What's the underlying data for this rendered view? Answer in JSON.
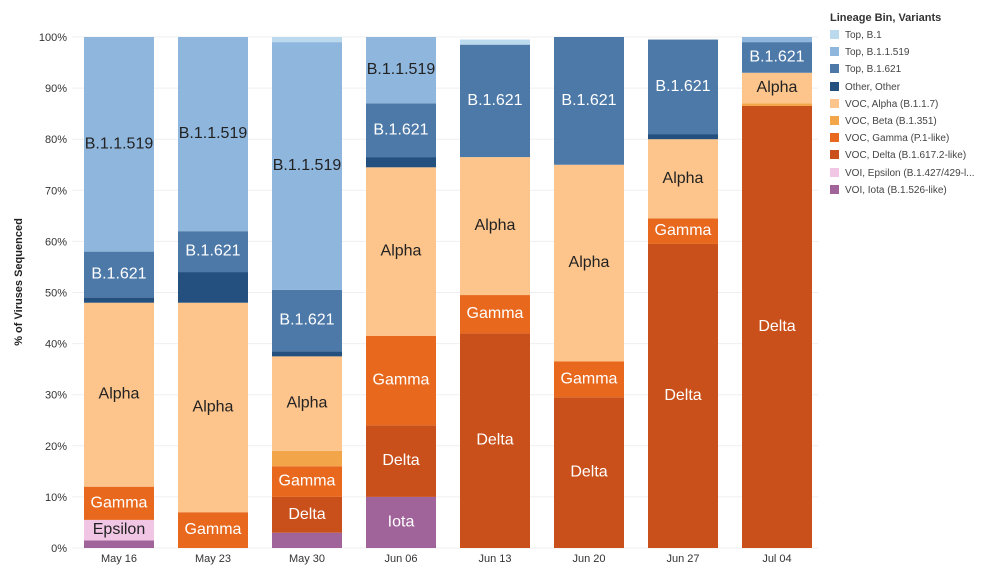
{
  "chart_data": {
    "type": "bar",
    "stacked": true,
    "normalized": true,
    "ylabel": "% of Viruses Sequenced",
    "ylim": [
      0,
      100
    ],
    "yticks": [
      "0%",
      "10%",
      "20%",
      "30%",
      "40%",
      "50%",
      "60%",
      "70%",
      "80%",
      "90%",
      "100%"
    ],
    "categories": [
      "May 16",
      "May 23",
      "May 30",
      "Jun 06",
      "Jun 13",
      "Jun 20",
      "Jun 27",
      "Jul 04"
    ],
    "legend": {
      "title": "Lineage Bin, Variants",
      "position": "right",
      "items": [
        "Top, B.1",
        "Top, B.1.1.519",
        "Top, B.1.621",
        "Other, Other",
        "VOC, Alpha (B.1.1.7)",
        "VOC, Beta (B.1.351)",
        "VOC, Gamma (P.1-like)",
        "VOC, Delta (B.1.617.2-like)",
        "VOI, Epsilon (B.1.427/429-l...",
        "VOI, Iota (B.1.526-like)"
      ]
    },
    "series": [
      {
        "name": "VOI, Iota (B.1.526-like)",
        "label": "Iota",
        "color": "#a0649b",
        "text_color": "#ffffff",
        "values": [
          1.5,
          0,
          3,
          10,
          0,
          0,
          0,
          0
        ]
      },
      {
        "name": "VOI, Epsilon (B.1.427/429-l...",
        "label": "Epsilon",
        "color": "#f1c6e4",
        "text_color": "#222222",
        "values": [
          4,
          0,
          0,
          0,
          0,
          0,
          0,
          0
        ]
      },
      {
        "name": "VOC, Delta (B.1.617.2-like)",
        "label": "Delta",
        "color": "#c9501b",
        "text_color": "#ffffff",
        "values": [
          0,
          0,
          7,
          14,
          42,
          29.5,
          59.5,
          86.5
        ]
      },
      {
        "name": "VOC, Gamma (P.1-like)",
        "label": "Gamma",
        "color": "#e8681d",
        "text_color": "#ffffff",
        "values": [
          6.5,
          7,
          6,
          17.5,
          7.5,
          7,
          5,
          0
        ]
      },
      {
        "name": "VOC, Beta (B.1.351)",
        "label": "",
        "color": "#f3a54a",
        "text_color": "#222222",
        "values": [
          0,
          0,
          3,
          0,
          0,
          0,
          0,
          0.5
        ]
      },
      {
        "name": "VOC, Alpha (B.1.1.7)",
        "label": "Alpha",
        "color": "#fdc48b",
        "text_color": "#222222",
        "values": [
          36,
          41,
          18.5,
          33,
          27,
          38.5,
          15.5,
          6
        ]
      },
      {
        "name": "Other, Other",
        "label": "",
        "color": "#23507f",
        "text_color": "#ffffff",
        "values": [
          1,
          6,
          1,
          2,
          0,
          0,
          1,
          0
        ]
      },
      {
        "name": "Top, B.1.621",
        "label": "B.1.621",
        "color": "#4d79a8",
        "text_color": "#ffffff",
        "values": [
          9,
          8,
          12,
          10.5,
          22,
          25,
          18.5,
          6
        ]
      },
      {
        "name": "Top, B.1.1.519",
        "label": "B.1.1.519",
        "color": "#8fb6dd",
        "text_color": "#222222",
        "values": [
          42,
          38,
          48.5,
          13,
          0,
          0,
          0,
          1
        ]
      },
      {
        "name": "Top, B.1",
        "label": "",
        "color": "#bcdaee",
        "text_color": "#222222",
        "values": [
          0,
          0,
          1,
          0,
          1,
          0,
          0,
          0
        ]
      }
    ]
  }
}
